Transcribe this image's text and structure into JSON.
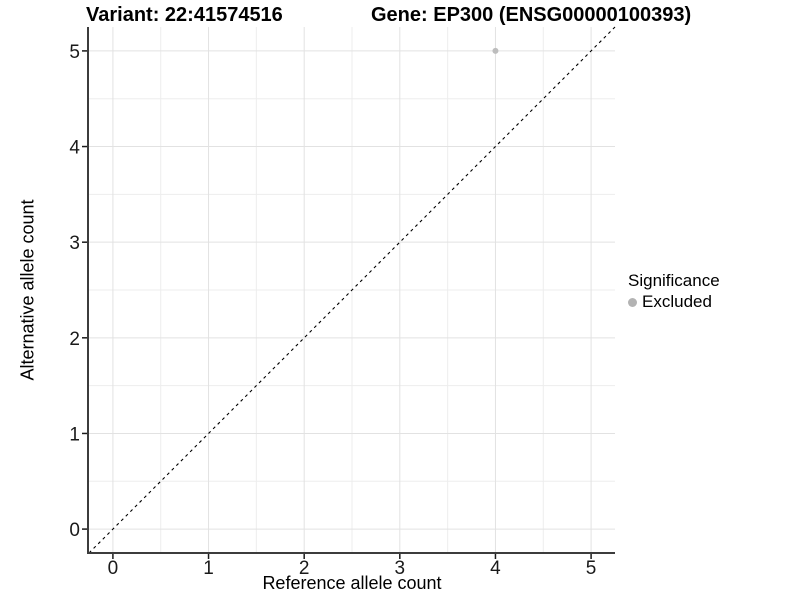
{
  "chart_data": {
    "type": "scatter",
    "title_left": "Variant: 22:41574516",
    "title_right": "Gene: EP300 (ENSG00000100393)",
    "xlabel": "Reference allele count",
    "ylabel": "Alternative allele count",
    "xlim": [
      -0.25,
      5.25
    ],
    "ylim": [
      -0.25,
      5.25
    ],
    "xticks": [
      0,
      1,
      2,
      3,
      4,
      5
    ],
    "yticks": [
      0,
      1,
      2,
      3,
      4,
      5
    ],
    "minor_grid_step": 0.5,
    "grid": true,
    "series": [
      {
        "name": "Excluded",
        "color": "#bdbdbd",
        "points": [
          {
            "x": 4,
            "y": 5
          }
        ]
      }
    ],
    "reference_line": {
      "type": "identity",
      "style": "dashed",
      "color": "#000000"
    },
    "legend": {
      "position": "right",
      "title": "Significance",
      "items": [
        {
          "label": "Excluded",
          "color": "#b3b3b3"
        }
      ]
    },
    "colors": {
      "background": "#ffffff",
      "grid_major": "#e2e2e2",
      "grid_minor": "#ededed",
      "axis_line": "#3c3c3c",
      "tick_mark": "#1a1a1a",
      "tick_label": "#1a1a1a"
    }
  }
}
